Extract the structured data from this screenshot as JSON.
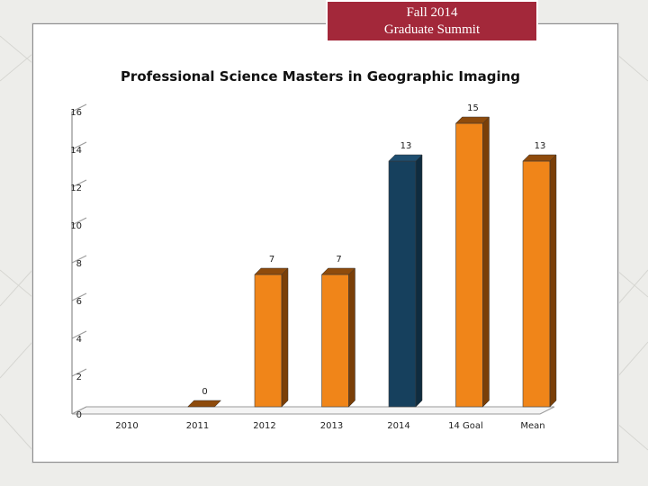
{
  "banner": {
    "line1": "Fall 2014",
    "line2": "Graduate Summit"
  },
  "colors": {
    "orange": "#f08519",
    "navy": "#16405d",
    "banner": "#a3283a"
  },
  "chart_data": {
    "type": "bar",
    "title": "Professional Science Masters in Geographic Imaging",
    "categories": [
      "2010",
      "2011",
      "2012",
      "2013",
      "2014",
      "14 Goal",
      "Mean"
    ],
    "values": [
      null,
      0,
      7,
      7,
      13,
      15,
      13
    ],
    "data_labels": [
      "",
      "0",
      "7",
      "7",
      "13",
      "15",
      "13"
    ],
    "highlight_index": 4,
    "yticks": [
      0,
      2,
      4,
      6,
      8,
      10,
      12,
      14,
      16
    ],
    "ylim": [
      0,
      16
    ],
    "xlabel": "",
    "ylabel": "",
    "grid": false,
    "legend": false,
    "style": "3d-bar"
  }
}
